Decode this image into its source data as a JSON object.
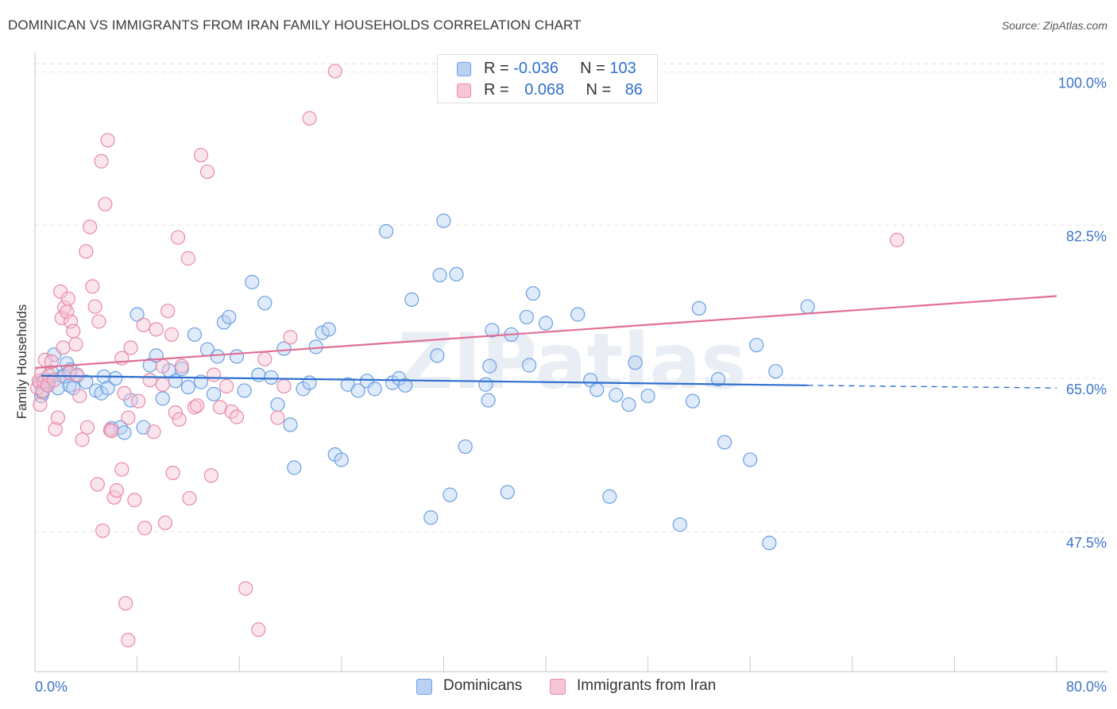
{
  "title": "DOMINICAN VS IMMIGRANTS FROM IRAN FAMILY HOUSEHOLDS CORRELATION CHART",
  "source": "Source: ZipAtlas.com",
  "watermark": "ZIPatlas",
  "legend_stats": [
    {
      "r_label": "R = ",
      "r_value": "-0.036",
      "n_label": "N = ",
      "n_value": "103",
      "color": "#6a9fe0",
      "fill": "#b9d2f3"
    },
    {
      "r_label": "R = ",
      "r_value": "0.068",
      "n_label": "N = ",
      "n_value": "86",
      "color": "#e889a8",
      "fill": "#f7c6d6"
    }
  ],
  "legend_bottom": [
    {
      "label": "Dominicans",
      "color": "#6a9fe0",
      "fill": "#b9d2f3"
    },
    {
      "label": "Immigrants from Iran",
      "color": "#e889a8",
      "fill": "#f7c6d6"
    }
  ],
  "chart_data": {
    "type": "scatter",
    "title": "DOMINICAN VS IMMIGRANTS FROM IRAN FAMILY HOUSEHOLDS CORRELATION CHART",
    "xlabel": "",
    "ylabel": "Family Households",
    "xlim": [
      0,
      80
    ],
    "ylim": [
      31.5,
      101.5
    ],
    "x_tick_labels": [
      "0.0%",
      "80.0%"
    ],
    "y_ticks": [
      47.5,
      65.0,
      82.5,
      100.0
    ],
    "y_tick_labels": [
      "47.5%",
      "65.0%",
      "82.5%",
      "100.0%"
    ],
    "grid": true,
    "legend_placement": "top-center",
    "series": [
      {
        "name": "Dominicans",
        "color": "#6a9fe0",
        "fill": "#b9d2f3",
        "trend_color": "#2f6fce",
        "trend": {
          "x0": 0.5,
          "y0": 65.3,
          "x1": 60.5,
          "y1": 64.2,
          "x_dash_end": 80,
          "y_dash_end": 63.9
        },
        "points": [
          [
            0.4,
            64.5
          ],
          [
            0.5,
            63.0
          ],
          [
            0.6,
            63.4
          ],
          [
            0.8,
            64.9
          ],
          [
            1.0,
            64.3
          ],
          [
            1.1,
            64.6
          ],
          [
            1.3,
            65.7
          ],
          [
            1.5,
            67.7
          ],
          [
            1.8,
            63.9
          ],
          [
            2.2,
            65.3
          ],
          [
            2.3,
            65.2
          ],
          [
            2.5,
            66.7
          ],
          [
            2.7,
            64.2
          ],
          [
            2.8,
            66.0
          ],
          [
            3.0,
            63.9
          ],
          [
            3.3,
            65.3
          ],
          [
            4.0,
            64.6
          ],
          [
            4.8,
            63.6
          ],
          [
            5.2,
            63.3
          ],
          [
            5.4,
            65.2
          ],
          [
            5.7,
            63.9
          ],
          [
            6.0,
            59.3
          ],
          [
            6.3,
            65.0
          ],
          [
            6.7,
            59.4
          ],
          [
            7.0,
            58.8
          ],
          [
            7.5,
            62.5
          ],
          [
            8.0,
            72.3
          ],
          [
            8.5,
            59.4
          ],
          [
            9.0,
            66.5
          ],
          [
            9.5,
            67.6
          ],
          [
            10.0,
            62.7
          ],
          [
            10.5,
            65.9
          ],
          [
            11.0,
            64.7
          ],
          [
            11.5,
            66.1
          ],
          [
            12.0,
            64.0
          ],
          [
            12.5,
            70.0
          ],
          [
            13.0,
            64.6
          ],
          [
            13.5,
            68.3
          ],
          [
            14.0,
            63.2
          ],
          [
            14.3,
            67.5
          ],
          [
            14.8,
            71.4
          ],
          [
            15.2,
            72.0
          ],
          [
            15.8,
            67.5
          ],
          [
            16.4,
            63.6
          ],
          [
            17.0,
            76.0
          ],
          [
            17.5,
            65.4
          ],
          [
            18.0,
            73.6
          ],
          [
            18.5,
            65.1
          ],
          [
            19.0,
            62.0
          ],
          [
            19.5,
            68.4
          ],
          [
            20.0,
            59.7
          ],
          [
            20.3,
            54.8
          ],
          [
            21.0,
            63.8
          ],
          [
            21.5,
            64.5
          ],
          [
            22.0,
            68.6
          ],
          [
            22.5,
            70.2
          ],
          [
            23.0,
            70.6
          ],
          [
            23.5,
            56.3
          ],
          [
            24.0,
            55.7
          ],
          [
            24.5,
            64.3
          ],
          [
            25.3,
            63.6
          ],
          [
            26.0,
            64.7
          ],
          [
            26.6,
            63.8
          ],
          [
            27.5,
            81.8
          ],
          [
            28.0,
            64.5
          ],
          [
            28.5,
            65.0
          ],
          [
            29.0,
            64.2
          ],
          [
            29.5,
            74.0
          ],
          [
            31.0,
            49.1
          ],
          [
            31.5,
            67.6
          ],
          [
            31.7,
            76.8
          ],
          [
            32.0,
            83.0
          ],
          [
            32.5,
            51.7
          ],
          [
            33.0,
            76.9
          ],
          [
            33.7,
            57.2
          ],
          [
            35.3,
            64.3
          ],
          [
            35.5,
            62.5
          ],
          [
            35.6,
            66.4
          ],
          [
            35.8,
            70.5
          ],
          [
            37.0,
            52.0
          ],
          [
            37.3,
            70.0
          ],
          [
            38.7,
            66.5
          ],
          [
            38.5,
            72.0
          ],
          [
            39.0,
            74.7
          ],
          [
            40.0,
            71.3
          ],
          [
            42.5,
            72.3
          ],
          [
            43.5,
            64.8
          ],
          [
            44.0,
            63.7
          ],
          [
            45.0,
            51.5
          ],
          [
            45.5,
            63.1
          ],
          [
            46.5,
            62.0
          ],
          [
            47.0,
            66.8
          ],
          [
            48.0,
            63.0
          ],
          [
            50.5,
            48.3
          ],
          [
            51.5,
            62.4
          ],
          [
            52.0,
            73.0
          ],
          [
            53.5,
            64.9
          ],
          [
            54.0,
            57.7
          ],
          [
            56.0,
            55.7
          ],
          [
            56.5,
            68.8
          ],
          [
            57.5,
            46.2
          ],
          [
            58.0,
            65.8
          ],
          [
            60.5,
            73.2
          ]
        ]
      },
      {
        "name": "Immigrants from Iran",
        "color": "#e889a8",
        "fill": "#f7c6d6",
        "trend_color": "#e06f95",
        "trend": {
          "x0": 0,
          "y0": 66.2,
          "x1": 80,
          "y1": 74.4
        },
        "points": [
          [
            0.2,
            63.9
          ],
          [
            0.3,
            64.7
          ],
          [
            0.4,
            62.0
          ],
          [
            0.5,
            65.5
          ],
          [
            0.6,
            63.6
          ],
          [
            0.7,
            64.6
          ],
          [
            0.8,
            67.1
          ],
          [
            1.0,
            64.2
          ],
          [
            1.1,
            65.3
          ],
          [
            1.3,
            66.9
          ],
          [
            1.5,
            64.8
          ],
          [
            1.6,
            59.2
          ],
          [
            1.8,
            60.5
          ],
          [
            2.0,
            74.9
          ],
          [
            2.1,
            71.9
          ],
          [
            2.2,
            68.5
          ],
          [
            2.3,
            73.1
          ],
          [
            2.5,
            72.6
          ],
          [
            2.6,
            74.1
          ],
          [
            2.7,
            65.6
          ],
          [
            2.8,
            71.5
          ],
          [
            3.0,
            70.4
          ],
          [
            3.2,
            68.9
          ],
          [
            3.3,
            65.4
          ],
          [
            3.5,
            63.0
          ],
          [
            4.0,
            79.5
          ],
          [
            4.3,
            82.3
          ],
          [
            4.5,
            75.5
          ],
          [
            4.7,
            73.2
          ],
          [
            5.0,
            71.5
          ],
          [
            5.2,
            89.8
          ],
          [
            5.5,
            84.9
          ],
          [
            5.7,
            92.2
          ],
          [
            5.9,
            59.1
          ],
          [
            6.0,
            59.0
          ],
          [
            6.2,
            51.4
          ],
          [
            6.4,
            52.2
          ],
          [
            6.8,
            67.3
          ],
          [
            7.0,
            63.3
          ],
          [
            7.3,
            60.5
          ],
          [
            7.5,
            68.5
          ],
          [
            7.8,
            51.1
          ],
          [
            8.1,
            62.4
          ],
          [
            8.5,
            71.1
          ],
          [
            9.0,
            64.8
          ],
          [
            9.5,
            70.6
          ],
          [
            10.0,
            64.3
          ],
          [
            10.4,
            72.7
          ],
          [
            10.7,
            70.0
          ],
          [
            11.0,
            61.1
          ],
          [
            11.5,
            66.4
          ],
          [
            12.0,
            78.7
          ],
          [
            12.5,
            61.7
          ],
          [
            12.7,
            61.9
          ],
          [
            13.0,
            90.5
          ],
          [
            13.5,
            88.6
          ],
          [
            14.0,
            65.4
          ],
          [
            14.5,
            61.7
          ],
          [
            15.0,
            64.1
          ],
          [
            15.4,
            61.2
          ],
          [
            15.8,
            60.6
          ],
          [
            16.5,
            41.0
          ],
          [
            17.5,
            36.3
          ],
          [
            18.0,
            67.2
          ],
          [
            19.0,
            60.5
          ],
          [
            19.5,
            64.1
          ],
          [
            20.0,
            69.7
          ],
          [
            21.5,
            94.7
          ],
          [
            23.5,
            100.1
          ],
          [
            10.0,
            66.4
          ],
          [
            8.6,
            47.9
          ],
          [
            10.2,
            48.5
          ],
          [
            11.2,
            81.1
          ],
          [
            7.1,
            39.3
          ],
          [
            7.3,
            35.1
          ],
          [
            10.8,
            54.2
          ],
          [
            5.3,
            47.6
          ],
          [
            6.8,
            54.6
          ],
          [
            4.9,
            52.9
          ],
          [
            4.1,
            59.4
          ],
          [
            3.7,
            58.0
          ],
          [
            9.3,
            58.9
          ],
          [
            11.3,
            60.3
          ],
          [
            13.8,
            53.9
          ],
          [
            12.1,
            51.3
          ],
          [
            67.5,
            80.8
          ]
        ]
      }
    ]
  }
}
